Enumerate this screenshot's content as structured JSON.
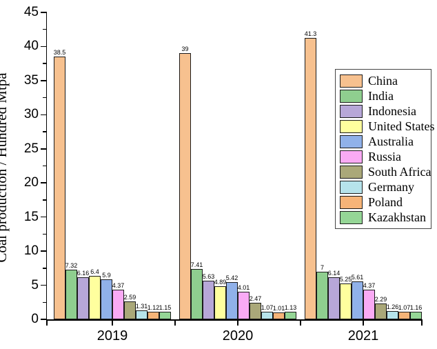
{
  "chart_data": {
    "type": "bar",
    "title": "",
    "xlabel": "",
    "ylabel": "Coal production / Hundred Mtpa",
    "ylim": [
      0,
      45
    ],
    "y_major_ticks": [
      0,
      5,
      10,
      15,
      20,
      25,
      30,
      35,
      40,
      45
    ],
    "y_minor_step": 2.5,
    "grid": false,
    "legend_position": "right",
    "categories": [
      "2019",
      "2020",
      "2021"
    ],
    "series": [
      {
        "name": "China",
        "color": "#F7C18F",
        "values": [
          38.5,
          39.0,
          41.3
        ],
        "labels": [
          "38.5",
          "39",
          "41.3"
        ]
      },
      {
        "name": "India",
        "color": "#8FCE8F",
        "values": [
          7.32,
          7.41,
          7.0
        ],
        "labels": [
          "7.32",
          "7.41",
          "7"
        ]
      },
      {
        "name": "Indonesia",
        "color": "#B7A7D8",
        "values": [
          6.16,
          5.63,
          6.14
        ],
        "labels": [
          "6.16",
          "5.63",
          "6.14"
        ]
      },
      {
        "name": "United States",
        "color": "#FFFF9E",
        "values": [
          6.4,
          4.89,
          5.25
        ],
        "labels": [
          "6.4",
          "4.89",
          "5.25"
        ]
      },
      {
        "name": "Australia",
        "color": "#90B1E9",
        "values": [
          5.9,
          5.42,
          5.61
        ],
        "labels": [
          "5.9",
          "5.42",
          "5.61"
        ]
      },
      {
        "name": "Russia",
        "color": "#F9AAF4",
        "values": [
          4.37,
          4.01,
          4.37
        ],
        "labels": [
          "4.37",
          "4.01",
          "4.37"
        ]
      },
      {
        "name": "South Africa",
        "color": "#AAA879",
        "values": [
          2.59,
          2.47,
          2.29
        ],
        "labels": [
          "2.59",
          "2.47",
          "2.29"
        ]
      },
      {
        "name": "Germany",
        "color": "#B6E3EB",
        "values": [
          1.31,
          1.07,
          1.26
        ],
        "labels": [
          "1.31",
          "1.07",
          "1.26"
        ]
      },
      {
        "name": "Poland",
        "color": "#F6B478",
        "values": [
          1.12,
          1.01,
          1.07
        ],
        "labels": [
          "1.12",
          "1.01",
          "1.07"
        ]
      },
      {
        "name": "Kazakhstan",
        "color": "#95D696",
        "values": [
          1.15,
          1.13,
          1.16
        ],
        "labels": [
          "1.15",
          "1.13",
          "1.16"
        ]
      }
    ]
  }
}
